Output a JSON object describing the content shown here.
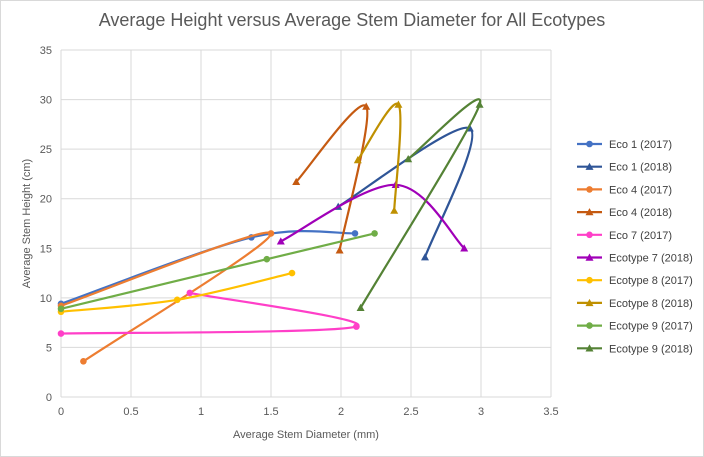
{
  "chart_data": {
    "type": "scatter",
    "title": "Average Height versus Average Stem Diameter for All Ecotypes",
    "xlabel": "Average Stem  Diameter (mm)",
    "ylabel": "Average Stem  Height (cm)",
    "xlim": [
      0,
      3.5
    ],
    "ylim": [
      0,
      35
    ],
    "xticks": [
      "0",
      "0.5",
      "1",
      "1.5",
      "2",
      "2.5",
      "3",
      "3.5"
    ],
    "yticks": [
      "0",
      "5",
      "10",
      "15",
      "20",
      "25",
      "30",
      "35"
    ],
    "grid": "vertical and horizontal",
    "legend_position": "right",
    "series": [
      {
        "name": "Eco 1 (2017)",
        "color": "#4472c4",
        "marker": "circle",
        "x": [
          0,
          1.36,
          2.1
        ],
        "y": [
          9.4,
          16.1,
          16.5
        ]
      },
      {
        "name": "Eco 1 (2018)",
        "color": "#2f5597",
        "marker": "triangle",
        "x": [
          2.6,
          2.92,
          1.98
        ],
        "y": [
          14.1,
          27.1,
          19.2
        ]
      },
      {
        "name": "Eco 4 (2017)",
        "color": "#ed7d31",
        "marker": "circle",
        "x": [
          0.16,
          1.5,
          0
        ],
        "y": [
          3.6,
          16.5,
          9.2
        ]
      },
      {
        "name": "Eco 4 (2018)",
        "color": "#c55a11",
        "marker": "triangle",
        "x": [
          1.68,
          2.18,
          1.99
        ],
        "y": [
          21.7,
          29.3,
          14.8
        ]
      },
      {
        "name": "Eco 7 (2017)",
        "color": "#ff3fc8",
        "marker": "circle",
        "x": [
          0,
          2.11,
          0.92
        ],
        "y": [
          6.4,
          7.1,
          10.5
        ]
      },
      {
        "name": "Ecotype 7 (2018)",
        "color": "#a000b8",
        "marker": "triangle",
        "x": [
          1.57,
          2.39,
          2.88
        ],
        "y": [
          15.7,
          21.4,
          15.0
        ]
      },
      {
        "name": "Ecotype 8 (2017)",
        "color": "#ffc000",
        "marker": "circle",
        "x": [
          0,
          0.83,
          1.65
        ],
        "y": [
          8.6,
          9.8,
          12.5
        ]
      },
      {
        "name": "Ecotype 8 (2018)",
        "color": "#bf9000",
        "marker": "triangle",
        "x": [
          2.38,
          2.41,
          2.12
        ],
        "y": [
          18.8,
          29.5,
          23.9
        ]
      },
      {
        "name": "Ecotype 9 (2017)",
        "color": "#70ad47",
        "marker": "circle",
        "x": [
          0,
          1.47,
          2.24
        ],
        "y": [
          8.9,
          13.9,
          16.5
        ]
      },
      {
        "name": "Ecotype 9 (2018)",
        "color": "#548235",
        "marker": "triangle",
        "x": [
          2.14,
          2.99,
          2.48
        ],
        "y": [
          9.0,
          29.5,
          24.0
        ]
      }
    ]
  }
}
